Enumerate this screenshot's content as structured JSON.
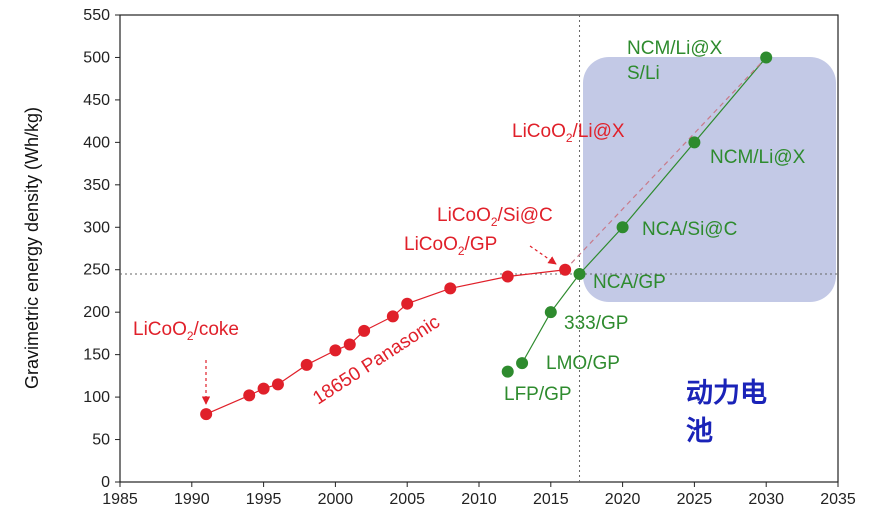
{
  "chart_data": {
    "type": "scatter",
    "ylabel": "Gravimetric energy density (Wh/kg)",
    "xlim": [
      1985,
      2035
    ],
    "ylim": [
      0,
      550
    ],
    "x_ticks": [
      1985,
      1990,
      1995,
      2000,
      2005,
      2010,
      2015,
      2020,
      2025,
      2030,
      2035
    ],
    "y_ticks": [
      0,
      50,
      100,
      150,
      200,
      250,
      300,
      350,
      400,
      450,
      500,
      550
    ],
    "reference_lines": {
      "vertical_x": 2017,
      "horizontal_y": 245
    },
    "highlight_region_label": "动力电池",
    "series": [
      {
        "name": "18650 Panasonic",
        "color": "#e0202a",
        "points": [
          {
            "x": 1991,
            "y": 80
          },
          {
            "x": 1994,
            "y": 102
          },
          {
            "x": 1995,
            "y": 110
          },
          {
            "x": 1996,
            "y": 115
          },
          {
            "x": 1998,
            "y": 138
          },
          {
            "x": 2000,
            "y": 155
          },
          {
            "x": 2001,
            "y": 162
          },
          {
            "x": 2002,
            "y": 178
          },
          {
            "x": 2004,
            "y": 195
          },
          {
            "x": 2005,
            "y": 210
          },
          {
            "x": 2008,
            "y": 228
          },
          {
            "x": 2012,
            "y": 242
          },
          {
            "x": 2016,
            "y": 250
          }
        ]
      },
      {
        "name": "",
        "color": "#2e8b2e",
        "points": [
          {
            "x": 2012,
            "y": 130
          },
          {
            "x": 2013,
            "y": 140
          },
          {
            "x": 2015,
            "y": 200
          },
          {
            "x": 2017,
            "y": 245
          },
          {
            "x": 2020,
            "y": 300
          },
          {
            "x": 2025,
            "y": 400
          },
          {
            "x": 2030,
            "y": 500
          }
        ]
      }
    ],
    "annotations": [
      {
        "text": "LiCoO2/coke",
        "color": "#e0202a",
        "x": 1991,
        "y": 80
      },
      {
        "text": "18650 Panasonic",
        "color": "#e0202a"
      },
      {
        "text": "LiCoO2/GP",
        "color": "#e0202a",
        "x": 2016,
        "y": 250
      },
      {
        "text": "LiCoO2/Si@C",
        "color": "#e0202a"
      },
      {
        "text": "LiCoO2/Li@X",
        "color": "#e0202a"
      },
      {
        "text": "LFP/GP",
        "color": "#2e8b2e",
        "x": 2012,
        "y": 130
      },
      {
        "text": "LMO/GP",
        "color": "#2e8b2e",
        "x": 2013,
        "y": 140
      },
      {
        "text": "333/GP",
        "color": "#2e8b2e",
        "x": 2015,
        "y": 200
      },
      {
        "text": "NCA/GP",
        "color": "#2e8b2e",
        "x": 2017,
        "y": 245
      },
      {
        "text": "NCA/Si@C",
        "color": "#2e8b2e",
        "x": 2020,
        "y": 300
      },
      {
        "text": "NCM/Li@X",
        "color": "#2e8b2e",
        "x": 2025,
        "y": 400
      },
      {
        "text": "NCM/Li@X",
        "color": "#2e8b2e",
        "x": 2030,
        "y": 500
      },
      {
        "text": "S/Li",
        "color": "#2e8b2e",
        "x": 2030,
        "y": 500
      }
    ]
  }
}
